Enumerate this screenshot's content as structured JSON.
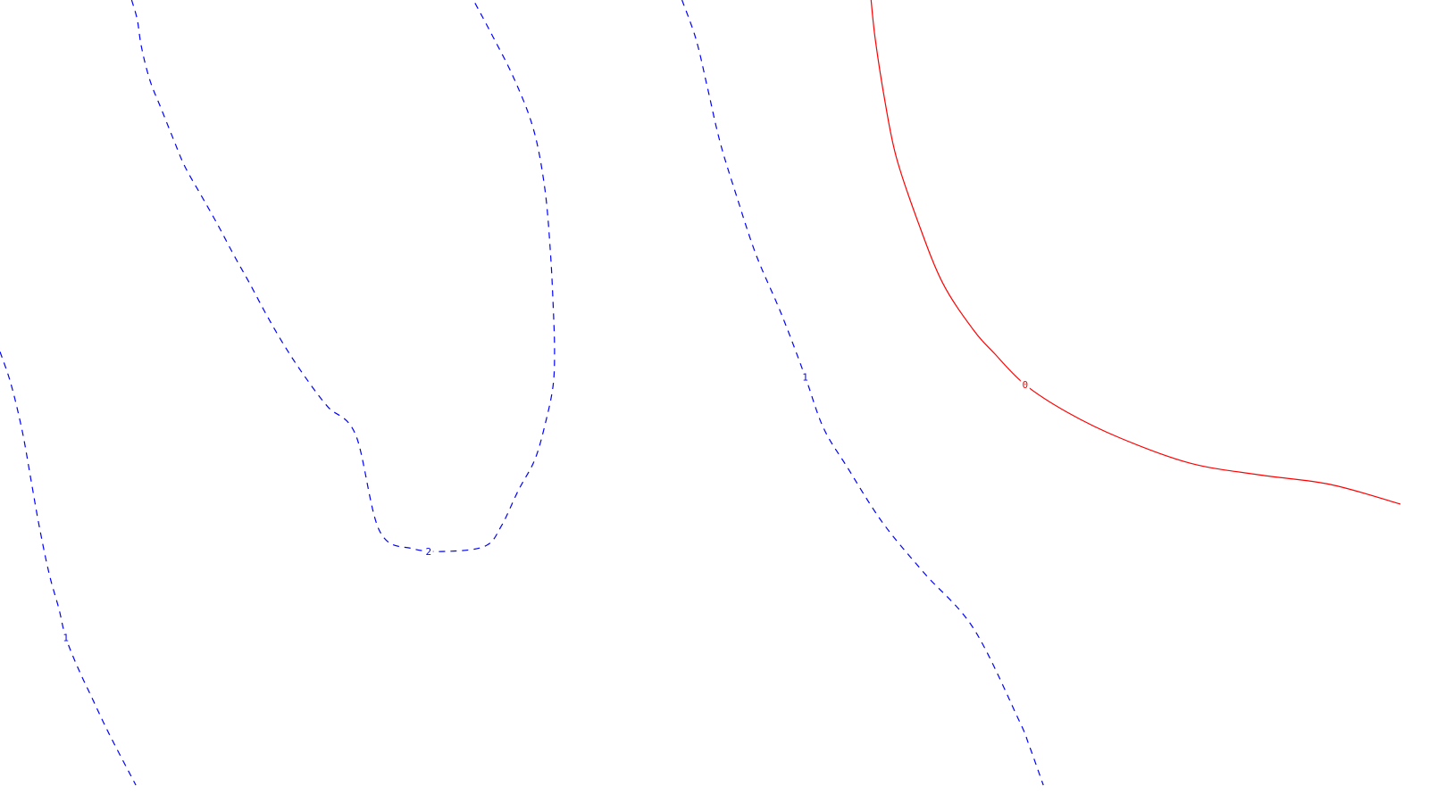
{
  "chart_data": {
    "type": "contour",
    "title": "",
    "xlabel": "",
    "ylabel": "",
    "grid": false,
    "legend": "none",
    "levels": [
      {
        "name": "level-2",
        "value": 2,
        "label": "2",
        "color": "#0000ff",
        "style": "dashed",
        "points": [
          [
            0.094,
            1.0
          ],
          [
            0.098,
            0.975
          ],
          [
            0.101,
            0.94
          ],
          [
            0.107,
            0.898
          ],
          [
            0.115,
            0.862
          ],
          [
            0.124,
            0.822
          ],
          [
            0.132,
            0.788
          ],
          [
            0.144,
            0.75
          ],
          [
            0.156,
            0.712
          ],
          [
            0.167,
            0.675
          ],
          [
            0.178,
            0.64
          ],
          [
            0.19,
            0.6
          ],
          [
            0.203,
            0.56
          ],
          [
            0.217,
            0.522
          ],
          [
            0.234,
            0.482
          ],
          [
            0.254,
            0.446
          ],
          [
            0.271,
            0.324
          ],
          [
            0.295,
            0.301
          ],
          [
            0.322,
            0.298
          ],
          [
            0.347,
            0.305
          ],
          [
            0.358,
            0.33
          ],
          [
            0.37,
            0.375
          ],
          [
            0.382,
            0.415
          ],
          [
            0.39,
            0.465
          ],
          [
            0.395,
            0.51
          ],
          [
            0.396,
            0.555
          ],
          [
            0.395,
            0.61
          ],
          [
            0.393,
            0.68
          ],
          [
            0.389,
            0.76
          ],
          [
            0.381,
            0.835
          ],
          [
            0.367,
            0.9
          ],
          [
            0.35,
            0.96
          ],
          [
            0.338,
            1.0
          ]
        ],
        "label_at": [
          0.306,
          0.298
        ]
      },
      {
        "name": "level-1-left",
        "value": 1,
        "label": "1",
        "color": "#0000ff",
        "style": "dashed",
        "points": [
          [
            0.0,
            0.552
          ],
          [
            0.008,
            0.51
          ],
          [
            0.016,
            0.45
          ],
          [
            0.022,
            0.39
          ],
          [
            0.028,
            0.33
          ],
          [
            0.035,
            0.27
          ],
          [
            0.042,
            0.225
          ],
          [
            0.047,
            0.188
          ],
          [
            0.056,
            0.148
          ],
          [
            0.066,
            0.11
          ],
          [
            0.078,
            0.065
          ],
          [
            0.097,
            0.0
          ]
        ],
        "label_at": [
          0.047,
          0.188
        ]
      },
      {
        "name": "level-1-right",
        "value": 1,
        "label": "1",
        "color": "#0000ff",
        "style": "dashed",
        "points": [
          [
            0.487,
            1.0
          ],
          [
            0.497,
            0.95
          ],
          [
            0.505,
            0.89
          ],
          [
            0.514,
            0.82
          ],
          [
            0.526,
            0.75
          ],
          [
            0.54,
            0.675
          ],
          [
            0.558,
            0.6
          ],
          [
            0.575,
            0.52
          ],
          [
            0.588,
            0.455
          ],
          [
            0.605,
            0.405
          ],
          [
            0.63,
            0.335
          ],
          [
            0.66,
            0.27
          ],
          [
            0.695,
            0.2
          ],
          [
            0.727,
            0.085
          ],
          [
            0.735,
            0.05
          ],
          [
            0.745,
            0.0
          ]
        ],
        "label_at": [
          0.575,
          0.52
        ]
      },
      {
        "name": "level-0",
        "value": 0,
        "label": "0",
        "color": "#ff0000",
        "style": "solid",
        "points": [
          [
            0.622,
            1.0
          ],
          [
            0.625,
            0.95
          ],
          [
            0.632,
            0.87
          ],
          [
            0.64,
            0.8
          ],
          [
            0.655,
            0.72
          ],
          [
            0.673,
            0.64
          ],
          [
            0.695,
            0.58
          ],
          [
            0.71,
            0.55
          ],
          [
            0.732,
            0.51
          ],
          [
            0.762,
            0.475
          ],
          [
            0.8,
            0.442
          ],
          [
            0.85,
            0.41
          ],
          [
            0.9,
            0.395
          ],
          [
            0.95,
            0.383
          ],
          [
            1.0,
            0.358
          ]
        ],
        "label_at": [
          0.732,
          0.51
        ]
      }
    ]
  }
}
